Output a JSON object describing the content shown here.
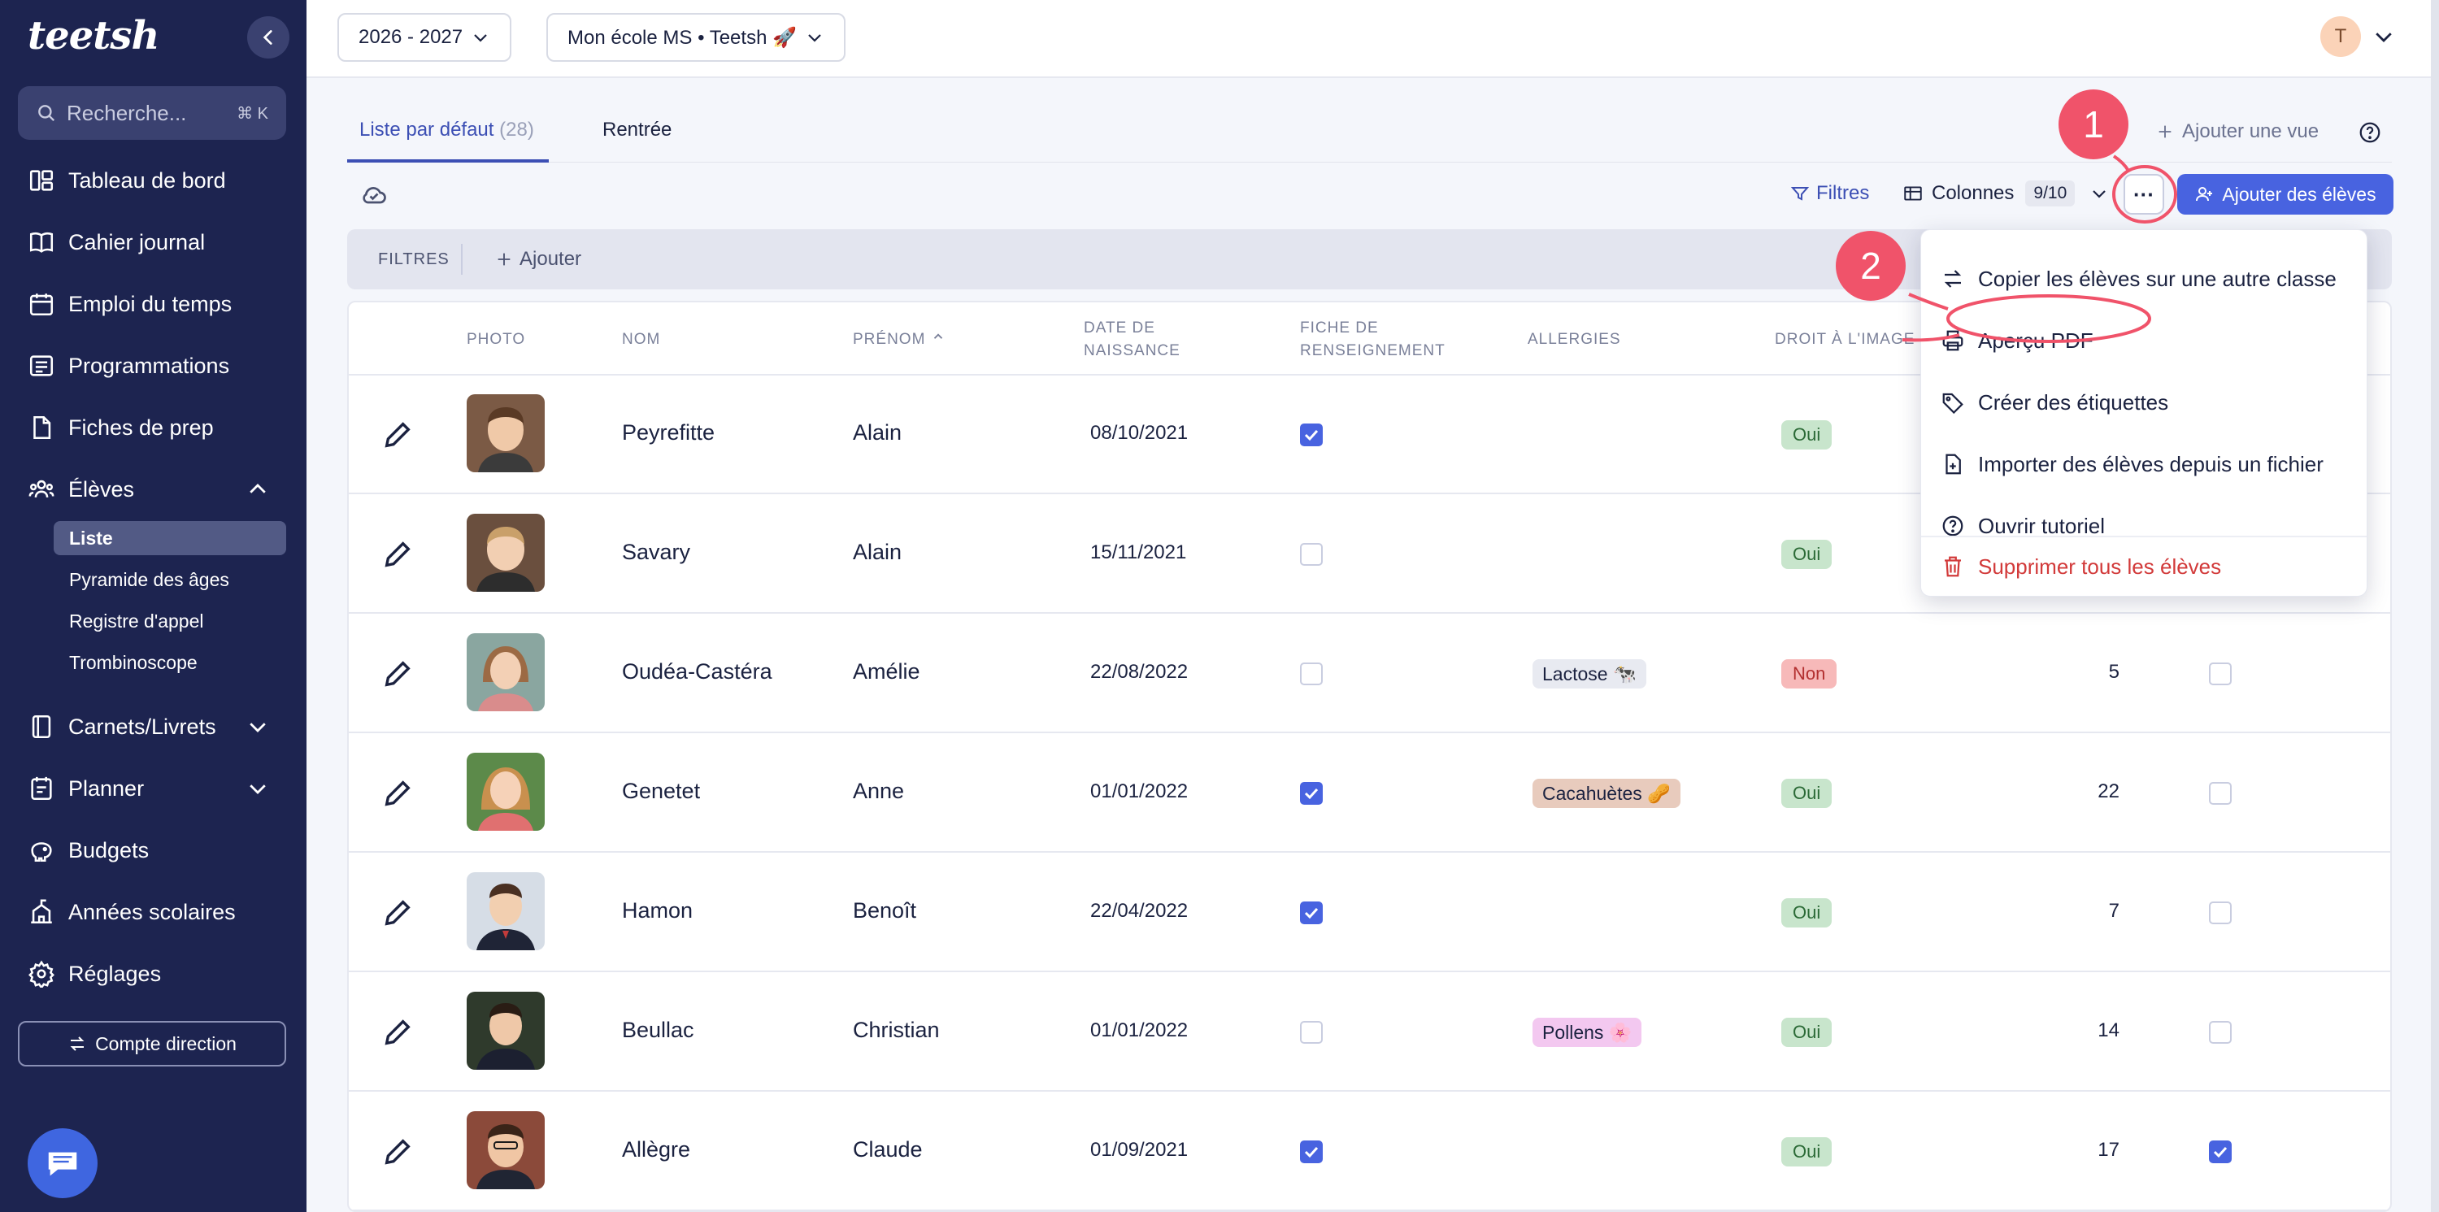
{
  "sidebar": {
    "logo": "teetsh",
    "search": {
      "placeholder": "Recherche...",
      "shortcut": "⌘ K"
    },
    "items": [
      {
        "label": "Tableau de bord",
        "icon": "dashboard-icon"
      },
      {
        "label": "Cahier journal",
        "icon": "book-icon"
      },
      {
        "label": "Emploi du temps",
        "icon": "calendar-icon"
      },
      {
        "label": "Programmations",
        "icon": "programming-icon"
      },
      {
        "label": "Fiches de prep",
        "icon": "document-icon"
      },
      {
        "label": "Élèves",
        "icon": "students-icon"
      },
      {
        "label": "Carnets/Livrets",
        "icon": "notebook-icon"
      },
      {
        "label": "Planner",
        "icon": "planner-icon"
      },
      {
        "label": "Budgets",
        "icon": "piggy-bank-icon"
      },
      {
        "label": "Années scolaires",
        "icon": "school-icon"
      },
      {
        "label": "Réglages",
        "icon": "gear-icon"
      }
    ],
    "sub_items": [
      "Liste",
      "Pyramide des âges",
      "Registre d'appel",
      "Trombinoscope"
    ],
    "direction_button": "Compte direction"
  },
  "topbar": {
    "year_select": "2026 - 2027",
    "school_select": "Mon école MS • Teetsh 🚀",
    "avatar_initial": "T"
  },
  "tabs": [
    {
      "label": "Liste par défaut",
      "count": "(28)"
    },
    {
      "label": "Rentrée",
      "count": ""
    }
  ],
  "toolbar": {
    "add_view": "Ajouter une vue",
    "filters": "Filtres",
    "columns": "Colonnes",
    "columns_count": "9/10",
    "more": "···",
    "add_students": "Ajouter des élèves"
  },
  "filter_bar": {
    "label": "FILTRES",
    "add": "Ajouter"
  },
  "table": {
    "headers": {
      "photo": "PHOTO",
      "nom": "NOM",
      "prenom": "PRÉNOM",
      "naissance_1": "DATE DE",
      "naissance_2": "NAISSANCE",
      "fiche_1": "FICHE DE",
      "fiche_2": "RENSEIGNEMENT",
      "allergies": "ALLERGIES",
      "droit": "DROIT À L'IMAGE"
    },
    "rows": [
      {
        "nom": "Peyrefitte",
        "prenom": "Alain",
        "date": "08/10/2021",
        "fiche": true,
        "allergie": "",
        "droit": "Oui",
        "num": "",
        "extra": false
      },
      {
        "nom": "Savary",
        "prenom": "Alain",
        "date": "15/11/2021",
        "fiche": false,
        "allergie": "",
        "droit": "Oui",
        "num": "",
        "extra": false
      },
      {
        "nom": "Oudéa-Castéra",
        "prenom": "Amélie",
        "date": "22/08/2022",
        "fiche": false,
        "allergie": "Lactose 🐄",
        "droit": "Non",
        "num": "5",
        "extra": false
      },
      {
        "nom": "Genetet",
        "prenom": "Anne",
        "date": "01/01/2022",
        "fiche": true,
        "allergie": "Cacahuètes 🥜",
        "droit": "Oui",
        "num": "22",
        "extra": false
      },
      {
        "nom": "Hamon",
        "prenom": "Benoît",
        "date": "22/04/2022",
        "fiche": true,
        "allergie": "",
        "droit": "Oui",
        "num": "7",
        "extra": false
      },
      {
        "nom": "Beullac",
        "prenom": "Christian",
        "date": "01/01/2022",
        "fiche": false,
        "allergie": "Pollens 🌸",
        "droit": "Oui",
        "num": "14",
        "extra": false
      },
      {
        "nom": "Allègre",
        "prenom": "Claude",
        "date": "01/09/2021",
        "fiche": true,
        "allergie": "",
        "droit": "Oui",
        "num": "17",
        "extra": true
      }
    ]
  },
  "dropdown": {
    "items": [
      {
        "label": "Copier les élèves sur une autre classe",
        "icon": "swap-icon"
      },
      {
        "label": "Aperçu PDF",
        "icon": "printer-icon"
      },
      {
        "label": "Créer des étiquettes",
        "icon": "tag-icon"
      },
      {
        "label": "Importer des élèves depuis un fichier",
        "icon": "file-import-icon"
      },
      {
        "label": "Ouvrir tutoriel",
        "icon": "help-circle-icon"
      },
      {
        "label": "Supprimer tous les élèves",
        "icon": "trash-icon"
      }
    ]
  },
  "annotations": {
    "step1": "1",
    "step2": "2"
  },
  "colors": {
    "sidebar": "#1d2450",
    "accent": "#4863e0",
    "annotation": "#f0536a",
    "danger": "#d23a3a"
  }
}
